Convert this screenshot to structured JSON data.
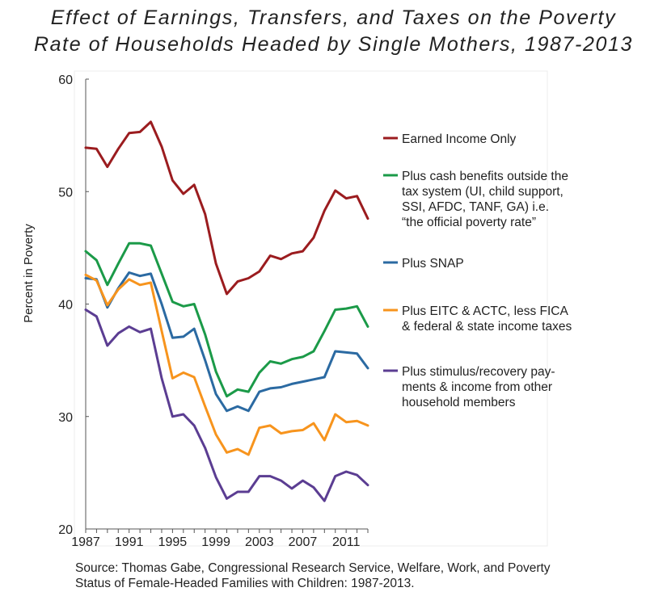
{
  "title": {
    "line1": "Effect of Earnings, Transfers, and Taxes on the Poverty",
    "line2": "Rate of Households Headed by Single Mothers, 1987-2013"
  },
  "source": {
    "line1": "Source: Thomas Gabe, Congressional Research Service, Welfare, Work, and Poverty",
    "line2": "Status of Female-Headed Families with Children: 1987-2013."
  },
  "chart_data": {
    "type": "line",
    "title": "Effect of Earnings, Transfers, and Taxes on the Poverty Rate of Households Headed by Single Mothers, 1987-2013",
    "xlabel": "",
    "ylabel": "Percent in Poverty",
    "x": [
      1987,
      1988,
      1989,
      1990,
      1991,
      1992,
      1993,
      1994,
      1995,
      1996,
      1997,
      1998,
      1999,
      2000,
      2001,
      2002,
      2003,
      2004,
      2005,
      2006,
      2007,
      2008,
      2009,
      2010,
      2011,
      2012,
      2013
    ],
    "xlim": [
      1987,
      2013
    ],
    "ylim": [
      20,
      60
    ],
    "x_ticks": [
      "1987",
      "1991",
      "1995",
      "1999",
      "2003",
      "2007",
      "2011"
    ],
    "y_ticks": [
      "20",
      "30",
      "40",
      "50",
      "60"
    ],
    "grid": false,
    "legend_position": "right",
    "series": [
      {
        "name": "Earned Income Only",
        "label_lines": [
          "Earned Income Only"
        ],
        "color": "#9b1c1f",
        "values": [
          53.9,
          53.8,
          52.2,
          53.8,
          55.2,
          55.3,
          56.2,
          54.0,
          51.0,
          49.8,
          50.6,
          48.0,
          43.6,
          40.9,
          42.0,
          42.3,
          42.9,
          44.3,
          44.0,
          44.5,
          44.7,
          45.9,
          48.3,
          50.1,
          49.4,
          49.6,
          47.6
        ]
      },
      {
        "name": "Plus cash benefits outside the tax system (UI, child support, SSI, AFDC, TANF, GA) i.e. “the official poverty rate”",
        "label_lines": [
          "Plus cash benefits outside the",
          "tax system (UI, child support,",
          "SSI,  AFDC, TANF, GA) i.e.",
          "“the official poverty rate”"
        ],
        "color": "#1b9a48",
        "values": [
          44.7,
          43.9,
          41.7,
          43.6,
          45.4,
          45.4,
          45.2,
          42.7,
          40.2,
          39.8,
          40.0,
          37.3,
          34.0,
          31.8,
          32.4,
          32.2,
          33.9,
          34.9,
          34.7,
          35.1,
          35.3,
          35.8,
          37.6,
          39.5,
          39.6,
          39.8,
          38.0
        ]
      },
      {
        "name": "Plus SNAP",
        "label_lines": [
          "Plus SNAP"
        ],
        "color": "#2b6aa2",
        "values": [
          42.3,
          42.2,
          39.7,
          41.4,
          42.8,
          42.5,
          42.7,
          40.0,
          37.0,
          37.1,
          37.8,
          35.0,
          32.0,
          30.5,
          30.9,
          30.5,
          32.2,
          32.5,
          32.6,
          32.9,
          33.1,
          33.3,
          33.5,
          35.8,
          35.7,
          35.6,
          34.3
        ]
      },
      {
        "name": "Plus EITC & ACTC, less FICA & federal & state income taxes",
        "label_lines": [
          "Plus EITC & ACTC, less FICA",
          "& federal & state income taxes"
        ],
        "color": "#f7941d",
        "values": [
          42.6,
          42.1,
          39.9,
          41.3,
          42.2,
          41.7,
          41.9,
          37.6,
          33.4,
          33.9,
          33.5,
          30.9,
          28.4,
          26.8,
          27.1,
          26.6,
          29.0,
          29.2,
          28.5,
          28.7,
          28.8,
          29.4,
          27.9,
          30.2,
          29.5,
          29.6,
          29.2
        ]
      },
      {
        "name": "Plus stimulus/recovery payments & income from other household members",
        "label_lines": [
          "Plus  stimulus/recovery  pay-",
          "ments  &  income  from  other",
          "household members"
        ],
        "color": "#5b3d92",
        "values": [
          39.5,
          38.9,
          36.3,
          37.4,
          38.0,
          37.5,
          37.8,
          33.4,
          30.0,
          30.2,
          29.2,
          27.2,
          24.6,
          22.7,
          23.3,
          23.3,
          24.7,
          24.7,
          24.3,
          23.6,
          24.3,
          23.7,
          22.5,
          24.7,
          25.1,
          24.8,
          23.9
        ]
      }
    ]
  }
}
